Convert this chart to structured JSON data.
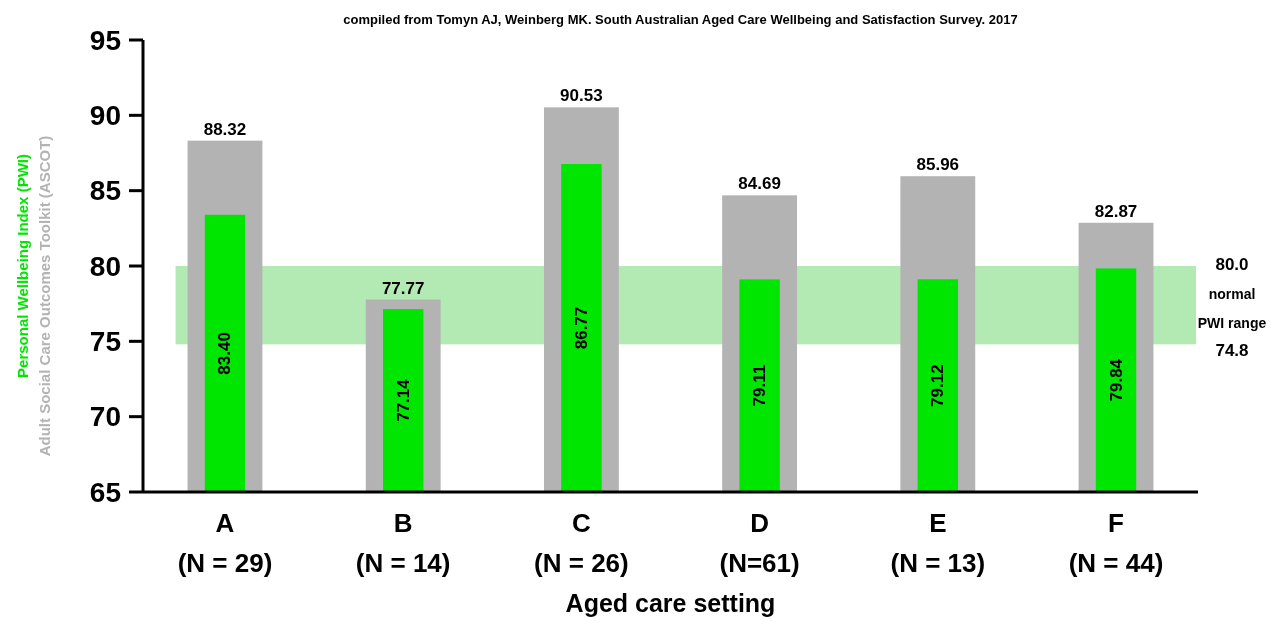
{
  "chart_data": {
    "type": "bar",
    "subtitle": "compiled from Tomyn AJ, Weinberg MK. South Australian Aged Care Wellbeing and Satisfaction Survey. 2017",
    "xlabel": "Aged care setting",
    "categories": [
      "A\n(N = 29)",
      "B\n(N = 14)",
      "C\n(N = 26)",
      "D\n(N=61)",
      "E\n(N = 13)",
      "F\n(N = 44)"
    ],
    "series": [
      {
        "name": "Adult Social Care Outcomes Toolkit (ASCOT)",
        "color": "#b3b3b3",
        "values": [
          88.32,
          77.77,
          90.53,
          84.69,
          85.96,
          82.87
        ],
        "value_labels": [
          "88.32",
          "77.77",
          "90.53",
          "84.69",
          "85.96",
          "82.87"
        ]
      },
      {
        "name": "Personal Wellbeing Index (PWI)",
        "color": "#00e600",
        "values": [
          83.4,
          77.14,
          86.77,
          79.11,
          79.12,
          79.84
        ],
        "value_labels": [
          "83.40",
          "77.14",
          "86.77",
          "79.11",
          "79.12",
          "79.84"
        ]
      }
    ],
    "ylim": [
      65,
      95
    ],
    "yticks": [
      65,
      70,
      75,
      80,
      85,
      90,
      95
    ],
    "data_labels": true,
    "bands": [
      {
        "axis": "y",
        "from": 74.8,
        "to": 80.0,
        "label": "80.0\nnormal\nPWI range\n74.8",
        "color": "#b3eab3"
      }
    ]
  }
}
